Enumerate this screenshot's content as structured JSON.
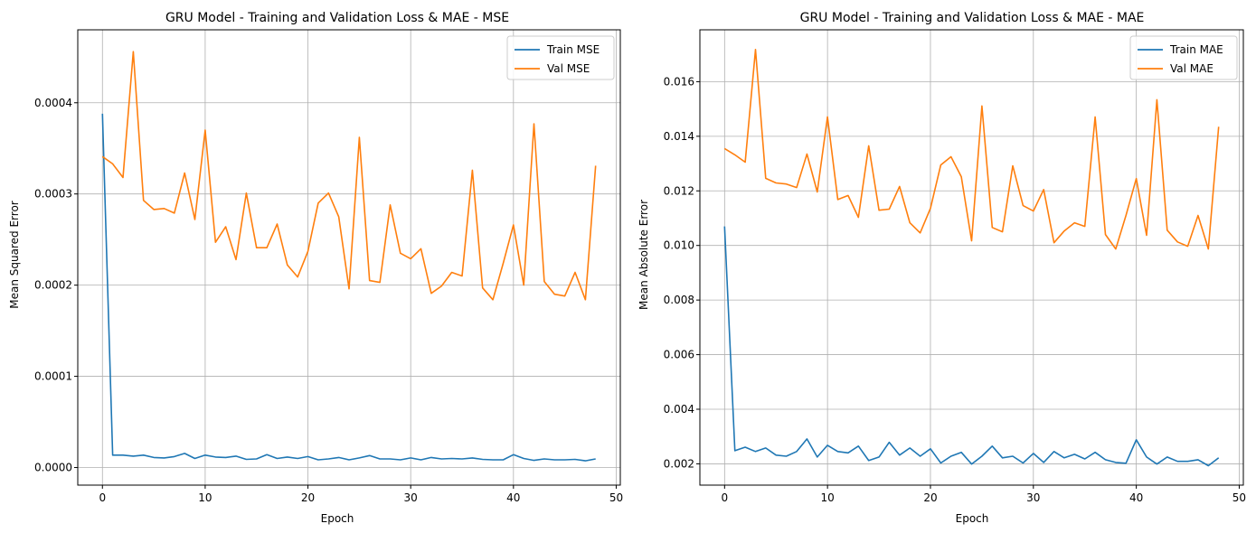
{
  "chart_data": [
    {
      "type": "line",
      "title": "GRU Model - Training and Validation Loss & MAE - MSE",
      "xlabel": "Epoch",
      "ylabel": "Mean Squared Error",
      "xlim": [
        -2.4,
        50.4
      ],
      "ylim": [
        -1.93e-05,
        0.00048
      ],
      "xticks": [
        0,
        10,
        20,
        30,
        40,
        50
      ],
      "xtick_labels": [
        "0",
        "10",
        "20",
        "30",
        "40",
        "50"
      ],
      "yticks": [
        0.0,
        0.0001,
        0.0002,
        0.0003,
        0.0004
      ],
      "ytick_labels": [
        "0.0000",
        "0.0001",
        "0.0002",
        "0.0003",
        "0.0004"
      ],
      "grid": true,
      "legend": "top-right",
      "x": [
        0,
        1,
        2,
        3,
        4,
        5,
        6,
        7,
        8,
        9,
        10,
        11,
        12,
        13,
        14,
        15,
        16,
        17,
        18,
        19,
        20,
        21,
        22,
        23,
        24,
        25,
        26,
        27,
        28,
        29,
        30,
        31,
        32,
        33,
        34,
        35,
        36,
        37,
        38,
        39,
        40,
        41,
        42,
        43,
        44,
        45,
        46,
        47,
        48
      ],
      "series": [
        {
          "name": "Train MSE",
          "color": "#1f77b4",
          "values": [
            0.000388,
            1.36e-05,
            1.36e-05,
            1.25e-05,
            1.36e-05,
            1.1e-05,
            1.05e-05,
            1.2e-05,
            1.55e-05,
            9.9e-06,
            1.36e-05,
            1.15e-05,
            1.1e-05,
            1.25e-05,
            8.9e-06,
            9.4e-06,
            1.41e-05,
            9.9e-06,
            1.15e-05,
            9.9e-06,
            1.2e-05,
            8.4e-06,
            9.4e-06,
            1.1e-05,
            8.4e-06,
            1.05e-05,
            1.31e-05,
            9.4e-06,
            9.4e-06,
            8.4e-06,
            1.05e-05,
            8.4e-06,
            1.1e-05,
            9.4e-06,
            9.9e-06,
            9.4e-06,
            1.05e-05,
            8.9e-06,
            8.4e-06,
            8.4e-06,
            1.41e-05,
            9.9e-06,
            7.8e-06,
            9.4e-06,
            8.4e-06,
            8.4e-06,
            8.9e-06,
            7.3e-06,
            9.4e-06
          ]
        },
        {
          "name": "Val MSE",
          "color": "#ff7f0e",
          "values": [
            0.000341,
            0.000333,
            0.000318,
            0.000456,
            0.000293,
            0.000283,
            0.000284,
            0.000279,
            0.000323,
            0.000272,
            0.00037,
            0.000247,
            0.000264,
            0.000228,
            0.000301,
            0.000241,
            0.000241,
            0.000267,
            0.000222,
            0.000209,
            0.000237,
            0.00029,
            0.000301,
            0.000275,
            0.000196,
            0.000362,
            0.000205,
            0.000203,
            0.000288,
            0.000235,
            0.000229,
            0.00024,
            0.000191,
            0.000199,
            0.000214,
            0.00021,
            0.000326,
            0.000197,
            0.000184,
            0.000224,
            0.000266,
            0.0002,
            0.000377,
            0.000204,
            0.00019,
            0.000188,
            0.000214,
            0.000184,
            0.000331
          ]
        }
      ]
    },
    {
      "type": "line",
      "title": "GRU Model - Training and Validation Loss & MAE - MAE",
      "xlabel": "Epoch",
      "ylabel": "Mean Absolute Error",
      "xlim": [
        -2.4,
        50.4
      ],
      "ylim": [
        0.00122,
        0.0179
      ],
      "xticks": [
        0,
        10,
        20,
        30,
        40,
        50
      ],
      "xtick_labels": [
        "0",
        "10",
        "20",
        "30",
        "40",
        "50"
      ],
      "yticks": [
        0.002,
        0.004,
        0.006,
        0.008,
        0.01,
        0.012,
        0.014,
        0.016
      ],
      "ytick_labels": [
        "0.002",
        "0.004",
        "0.006",
        "0.008",
        "0.010",
        "0.012",
        "0.014",
        "0.016"
      ],
      "grid": true,
      "legend": "top-right",
      "x": [
        0,
        1,
        2,
        3,
        4,
        5,
        6,
        7,
        8,
        9,
        10,
        11,
        12,
        13,
        14,
        15,
        16,
        17,
        18,
        19,
        20,
        21,
        22,
        23,
        24,
        25,
        26,
        27,
        28,
        29,
        30,
        31,
        32,
        33,
        34,
        35,
        36,
        37,
        38,
        39,
        40,
        41,
        42,
        43,
        44,
        45,
        46,
        47,
        48
      ],
      "series": [
        {
          "name": "Train MAE",
          "color": "#1f77b4",
          "values": [
            0.0107,
            0.00248,
            0.00261,
            0.00245,
            0.00258,
            0.00232,
            0.00228,
            0.00245,
            0.00291,
            0.00225,
            0.00268,
            0.00245,
            0.0024,
            0.00265,
            0.00212,
            0.00225,
            0.00279,
            0.00232,
            0.00258,
            0.00228,
            0.00255,
            0.00203,
            0.00228,
            0.00242,
            0.00199,
            0.00228,
            0.00265,
            0.00222,
            0.00228,
            0.00203,
            0.00238,
            0.00205,
            0.00245,
            0.00222,
            0.00235,
            0.00218,
            0.00242,
            0.00215,
            0.00205,
            0.00202,
            0.00288,
            0.00225,
            0.00199,
            0.00225,
            0.00209,
            0.00209,
            0.00215,
            0.00193,
            0.00222
          ]
        },
        {
          "name": "Val MAE",
          "color": "#ff7f0e",
          "values": [
            0.01355,
            0.01332,
            0.01305,
            0.01718,
            0.01246,
            0.01229,
            0.01225,
            0.01212,
            0.01335,
            0.01196,
            0.01471,
            0.01168,
            0.01183,
            0.01103,
            0.01365,
            0.01129,
            0.01133,
            0.01216,
            0.01083,
            0.01046,
            0.01136,
            0.01295,
            0.01325,
            0.01252,
            0.01017,
            0.01511,
            0.01066,
            0.0105,
            0.01292,
            0.01146,
            0.01126,
            0.01205,
            0.0101,
            0.01053,
            0.01083,
            0.0107,
            0.01471,
            0.0104,
            0.00987,
            0.0111,
            0.01245,
            0.01037,
            0.01534,
            0.01056,
            0.01013,
            0.00997,
            0.0111,
            0.00987,
            0.01435
          ]
        }
      ]
    }
  ]
}
